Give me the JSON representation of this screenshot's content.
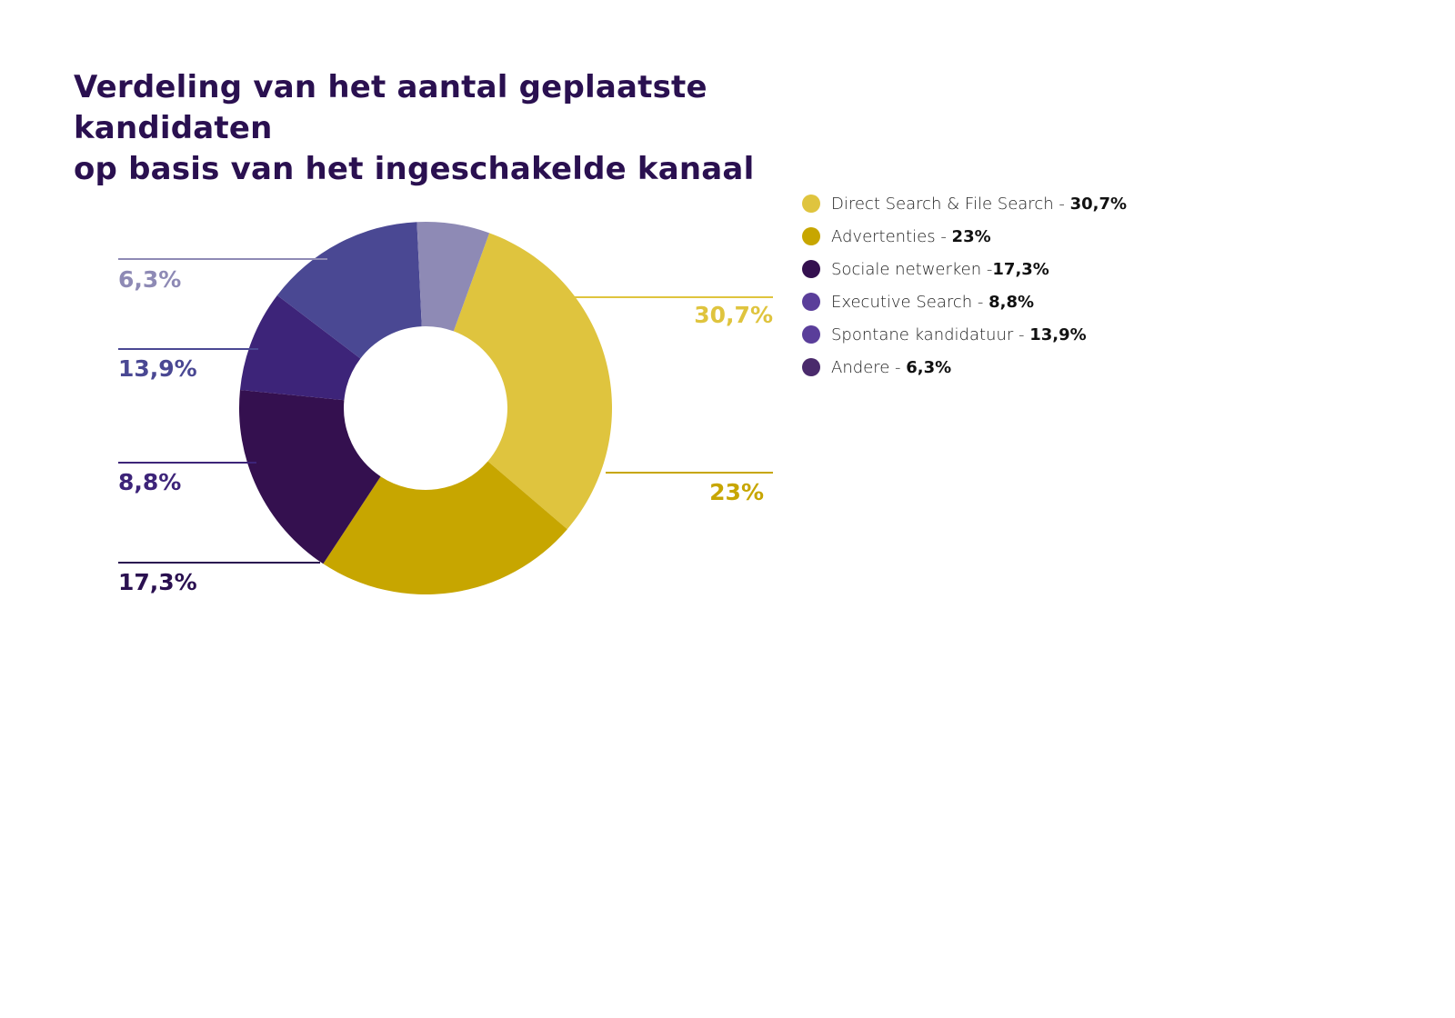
{
  "chart_data": {
    "type": "donut",
    "title_lines": [
      "Verdeling van het aantal geplaatste kandidaten",
      "op basis van het ingeschakelde kanaal"
    ],
    "slices": [
      {
        "label": "Direct Search & File Search",
        "value": 30.7,
        "value_label": "30,7%",
        "legend_sep": " - ",
        "legend_value": "30,7%",
        "color": "#dfc43e",
        "callout_side": "right"
      },
      {
        "label": "Advertenties",
        "value": 23.0,
        "value_label": "23%",
        "legend_sep": " - ",
        "legend_value": "23%",
        "color": "#c7a600",
        "callout_side": "right"
      },
      {
        "label": "Sociale netwerken",
        "value": 17.3,
        "value_label": "17,3%",
        "legend_sep": " -",
        "legend_value": "17,3%",
        "color": "#34104f",
        "callout_side": "left"
      },
      {
        "label": "Executive Search",
        "value": 8.8,
        "value_label": "8,8%",
        "legend_sep": " - ",
        "legend_value": "8,8%",
        "color": "#3d2479",
        "callout_side": "left"
      },
      {
        "label": "Spontane kandidatuur",
        "value": 13.9,
        "value_label": "13,9%",
        "legend_sep": " - ",
        "legend_value": "13,9%",
        "color": "#4a4893",
        "callout_side": "left"
      },
      {
        "label": "Andere",
        "value": 6.3,
        "value_label": "6,3%",
        "legend_sep": " - ",
        "legend_value": "6,3%",
        "color": "#8e8ab5",
        "callout_side": "left"
      }
    ],
    "legend": {
      "placement": "right",
      "dot_colors": [
        "#dfc43e",
        "#c7a600",
        "#34104f",
        "#5a3e9a",
        "#5a3e9a",
        "#4a2a6c"
      ]
    },
    "label_colors": [
      "#dfc43e",
      "#c7a600",
      "#2a1050",
      "#3d2479",
      "#4a4893",
      "#8e8ab5"
    ]
  }
}
